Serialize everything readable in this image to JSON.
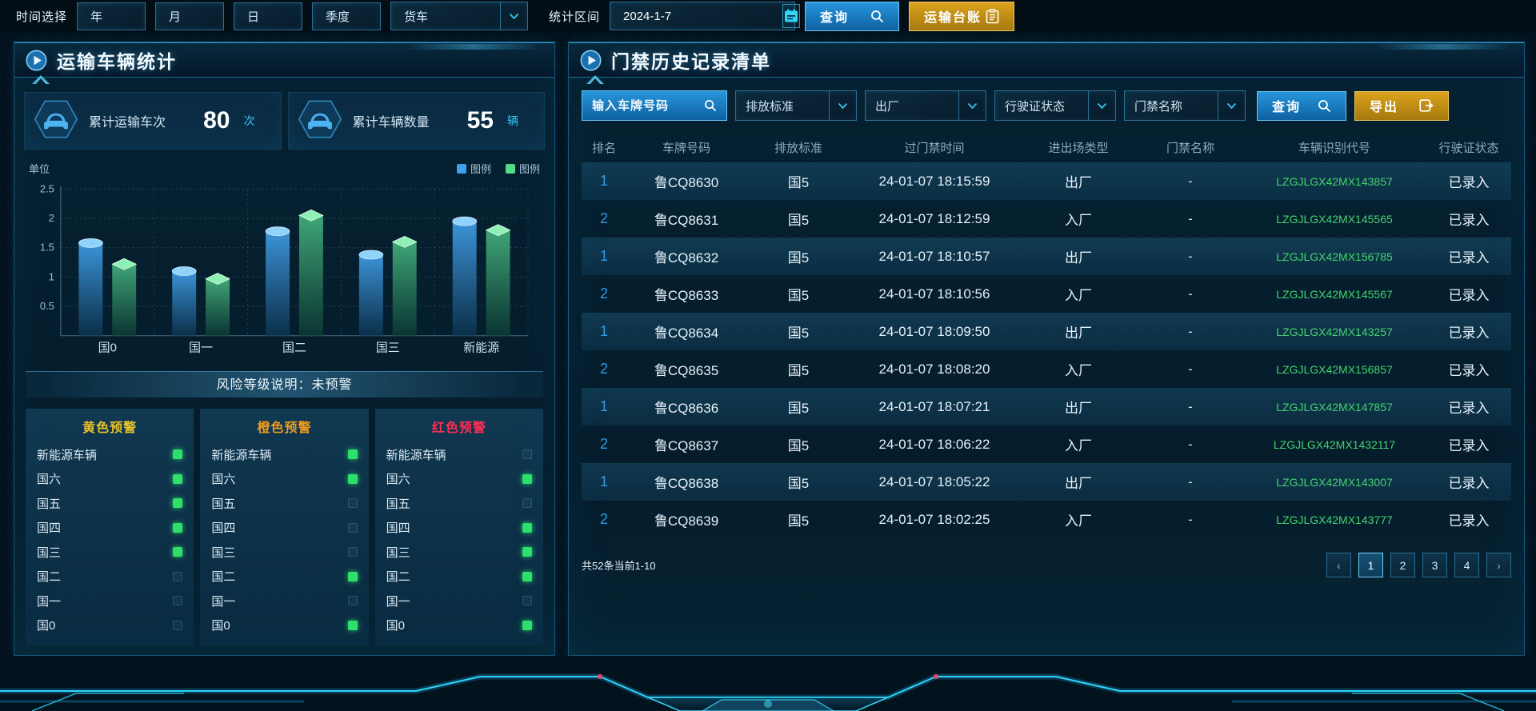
{
  "top_bar": {
    "time_label": "时间选择",
    "time_buttons": [
      {
        "id": "year",
        "label": "年"
      },
      {
        "id": "month",
        "label": "月"
      },
      {
        "id": "day",
        "label": "日"
      },
      {
        "id": "quarter",
        "label": "季度"
      }
    ],
    "vehicle_select_value": "货车",
    "range_label": "统计区间",
    "date_value": "2024-1-7",
    "query_label": "查询",
    "ledger_label": "运输台账"
  },
  "left_panel": {
    "title": "运输车辆统计",
    "stats": [
      {
        "label": "累计运输车次",
        "value": "80",
        "unit": "次"
      },
      {
        "label": "累计车辆数量",
        "value": "55",
        "unit": "辆"
      }
    ],
    "risk_banner": "风险等级说明：未预警",
    "warning_row_labels": [
      "新能源车辆",
      "国六",
      "国五",
      "国四",
      "国三",
      "国二",
      "国一",
      "国0"
    ],
    "warning_columns": [
      {
        "title": "黄色预警",
        "color": "#e8c32a",
        "states": [
          1,
          1,
          1,
          1,
          1,
          0,
          0,
          0
        ]
      },
      {
        "title": "橙色预警",
        "color": "#f09c1e",
        "states": [
          1,
          1,
          0,
          0,
          0,
          1,
          0,
          1
        ]
      },
      {
        "title": "红色预警",
        "color": "#ff2d55",
        "states": [
          0,
          1,
          0,
          1,
          1,
          1,
          0,
          1
        ]
      }
    ]
  },
  "chart_data": {
    "type": "bar",
    "unit_label": "单位",
    "categories": [
      "国0",
      "国一",
      "国二",
      "国三",
      "新能源"
    ],
    "series": [
      {
        "name": "图例",
        "color": "#3da0e8",
        "shape": "cylinder",
        "values": [
          1.58,
          1.1,
          1.78,
          1.38,
          1.95
        ]
      },
      {
        "name": "图例",
        "color": "#52d98a",
        "shape": "cuboid",
        "values": [
          1.22,
          0.97,
          2.05,
          1.6,
          1.8
        ]
      }
    ],
    "ylim": [
      0,
      2.5
    ],
    "yticks": [
      0.5,
      1,
      1.5,
      2,
      2.5
    ],
    "grid": true,
    "legend_position": "top-right"
  },
  "right_panel": {
    "title": "门禁历史记录清单",
    "filters": {
      "plate_placeholder": "输入车牌号码",
      "dropdowns": [
        {
          "id": "emission-standard",
          "label": "排放标准"
        },
        {
          "id": "exit-type",
          "label": "出厂"
        },
        {
          "id": "license-status",
          "label": "行驶证状态"
        },
        {
          "id": "gate-name",
          "label": "门禁名称"
        }
      ],
      "query_label": "查询",
      "export_label": "导出"
    },
    "table": {
      "headers": [
        "排名",
        "车牌号码",
        "排放标准",
        "过门禁时间",
        "进出场类型",
        "门禁名称",
        "车辆识别代号",
        "行驶证状态"
      ],
      "rows": [
        [
          "1",
          "鲁CQ8630",
          "国5",
          "24-01-07 18:15:59",
          "出厂",
          "-",
          "LZGJLGX42MX143857",
          "已录入"
        ],
        [
          "2",
          "鲁CQ8631",
          "国5",
          "24-01-07 18:12:59",
          "入厂",
          "-",
          "LZGJLGX42MX145565",
          "已录入"
        ],
        [
          "1",
          "鲁CQ8632",
          "国5",
          "24-01-07 18:10:57",
          "出厂",
          "-",
          "LZGJLGX42MX156785",
          "已录入"
        ],
        [
          "2",
          "鲁CQ8633",
          "国5",
          "24-01-07 18:10:56",
          "入厂",
          "-",
          "LZGJLGX42MX145567",
          "已录入"
        ],
        [
          "1",
          "鲁CQ8634",
          "国5",
          "24-01-07 18:09:50",
          "出厂",
          "-",
          "LZGJLGX42MX143257",
          "已录入"
        ],
        [
          "2",
          "鲁CQ8635",
          "国5",
          "24-01-07 18:08:20",
          "入厂",
          "-",
          "LZGJLGX42MX156857",
          "已录入"
        ],
        [
          "1",
          "鲁CQ8636",
          "国5",
          "24-01-07 18:07:21",
          "出厂",
          "-",
          "LZGJLGX42MX147857",
          "已录入"
        ],
        [
          "2",
          "鲁CQ8637",
          "国5",
          "24-01-07 18:06:22",
          "入厂",
          "-",
          "LZGJLGX42MX1432117",
          "已录入"
        ],
        [
          "1",
          "鲁CQ8638",
          "国5",
          "24-01-07 18:05:22",
          "出厂",
          "-",
          "LZGJLGX42MX143007",
          "已录入"
        ],
        [
          "2",
          "鲁CQ8639",
          "国5",
          "24-01-07 18:02:25",
          "入厂",
          "-",
          "LZGJLGX42MX143777",
          "已录入"
        ]
      ],
      "highlight_rows": [
        0,
        2,
        4,
        6,
        8
      ]
    },
    "pagination": {
      "summary": "共52条当前1-10",
      "prev": "‹",
      "next": "›",
      "pages": [
        "1",
        "2",
        "3",
        "4"
      ],
      "active_page": "1"
    }
  },
  "icons": {
    "query": "search-icon",
    "ledger": "clipboard-icon",
    "export": "export-icon",
    "date": "calendar-icon",
    "dropdown": "chevron-down-icon",
    "panel_header": "play-icon",
    "stat": "car-icon"
  },
  "colors": {
    "accent_cyan": "#2fd5f8",
    "button_blue": "#1779c4",
    "button_gold": "#cf9415",
    "series_blue": "#3da0e8",
    "series_green": "#52d98a",
    "vin_green": "#45d36e",
    "rank_blue": "#2e9ae4",
    "indicator_on": "#2ee06b"
  }
}
